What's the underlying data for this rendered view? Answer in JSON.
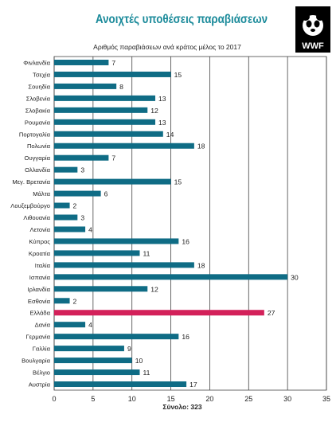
{
  "title": "Ανοιχτές υποθέσεις παραβιάσεων",
  "subtitle": "Αριθμός παραβιάσεων ανά κράτος μέλος το 2017",
  "logo": {
    "text": "WWF",
    "icon": "panda-logo-icon"
  },
  "colors": {
    "bar": "#0f6c85",
    "highlight": "#d3215a",
    "grid": "#444444",
    "title": "#1a8a9a"
  },
  "chart_data": {
    "type": "bar",
    "orientation": "horizontal",
    "title": "Ανοιχτές υποθέσεις παραβιάσεων",
    "subtitle": "Αριθμός παραβιάσεων ανά κράτος μέλος το 2017",
    "categories": [
      "Φινλανδία",
      "Τσεχία",
      "Σουηδία",
      "Σλοβενία",
      "Σλοβακία",
      "Ρουμανία",
      "Πορτογαλία",
      "Πολωνία",
      "Ουγγαρία",
      "Ολλανδία",
      "Μεγ. Βρετανία",
      "Μάλτα",
      "Λουξεμβούργο",
      "Λιθουανία",
      "Λετονία",
      "Κύπρος",
      "Κροατία",
      "Ιταλία",
      "Ισπανία",
      "Ιρλανδία",
      "Εσθονία",
      "Ελλάδα",
      "Δανία",
      "Γερμανία",
      "Γαλλία",
      "Βουλγαρία",
      "Βέλγιο",
      "Αυστρία"
    ],
    "values": [
      7,
      15,
      8,
      13,
      12,
      13,
      14,
      18,
      7,
      3,
      15,
      6,
      2,
      3,
      4,
      16,
      11,
      18,
      30,
      12,
      2,
      27,
      4,
      16,
      9,
      10,
      11,
      17
    ],
    "highlight": "Ελλάδα",
    "xlim": [
      0,
      35
    ],
    "xticks": [
      0,
      5,
      10,
      15,
      20,
      25,
      30,
      35
    ],
    "total_label": "Σύνολο: 323",
    "grid": true
  }
}
